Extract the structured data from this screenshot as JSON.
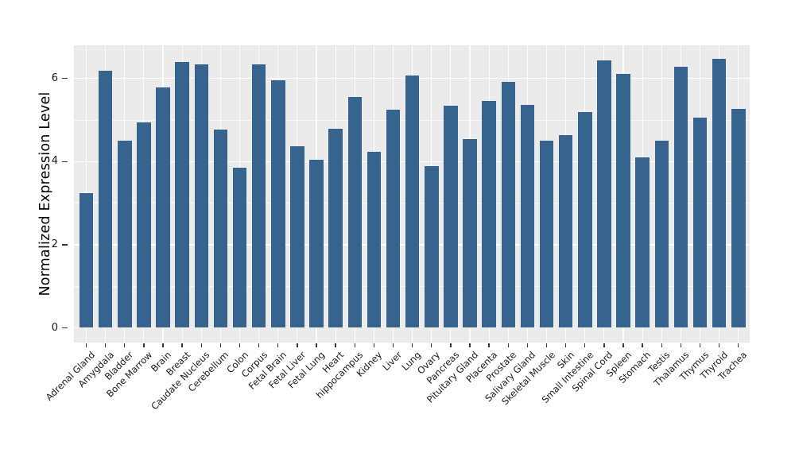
{
  "chart_data": {
    "type": "bar",
    "title": "",
    "xlabel": "",
    "ylabel": "Normalized Expression Level",
    "categories": [
      "Adrenal Gland",
      "Amygdala",
      "Bladder",
      "Bone Marrow",
      "Brain",
      "Breast",
      "Caudate Nucleus",
      "Cerebellum",
      "Colon",
      "Corpus",
      "Fetal Brain",
      "Fetal Liver",
      "Fetal Lung",
      "Heart",
      "hippocampus",
      "Kidney",
      "Liver",
      "Lung",
      "Ovary",
      "Pancreas",
      "Pituitary Gland",
      "Placenta",
      "Prostate",
      "Salivary Gland",
      "Skeletal Muscle",
      "Skin",
      "Small Intestine",
      "Spinal Cord",
      "Spleen",
      "Stomach",
      "Testis",
      "Thalamus",
      "Thymus",
      "Thyroid",
      "Trachea"
    ],
    "values": [
      3.24,
      6.18,
      4.5,
      4.94,
      5.78,
      6.4,
      6.33,
      4.77,
      3.85,
      6.34,
      5.96,
      4.36,
      4.04,
      4.79,
      5.55,
      4.24,
      5.25,
      6.07,
      3.89,
      5.35,
      4.54,
      5.45,
      5.91,
      5.37,
      4.51,
      4.64,
      5.19,
      6.44,
      6.1,
      4.11,
      4.5,
      6.29,
      5.06,
      6.47,
      5.26
    ],
    "ylim": [
      -0.35,
      6.85
    ],
    "yticks_major": [
      0,
      2,
      4,
      6
    ],
    "yticks_minor": [
      1,
      3,
      5
    ],
    "ytick_labels": [
      "0",
      "2",
      "4",
      "6"
    ],
    "grid": "on",
    "legend_position": "none",
    "x_label_rotation_deg": 45
  },
  "colors": {
    "bar": "#36648E",
    "panel_background": "#EBEBEB",
    "grid": "#FFFFFF",
    "tick": "#333333",
    "tick_text": "#1A1A1A",
    "axis_title_text": "#000000",
    "figure_background": "#FFFFFF"
  }
}
